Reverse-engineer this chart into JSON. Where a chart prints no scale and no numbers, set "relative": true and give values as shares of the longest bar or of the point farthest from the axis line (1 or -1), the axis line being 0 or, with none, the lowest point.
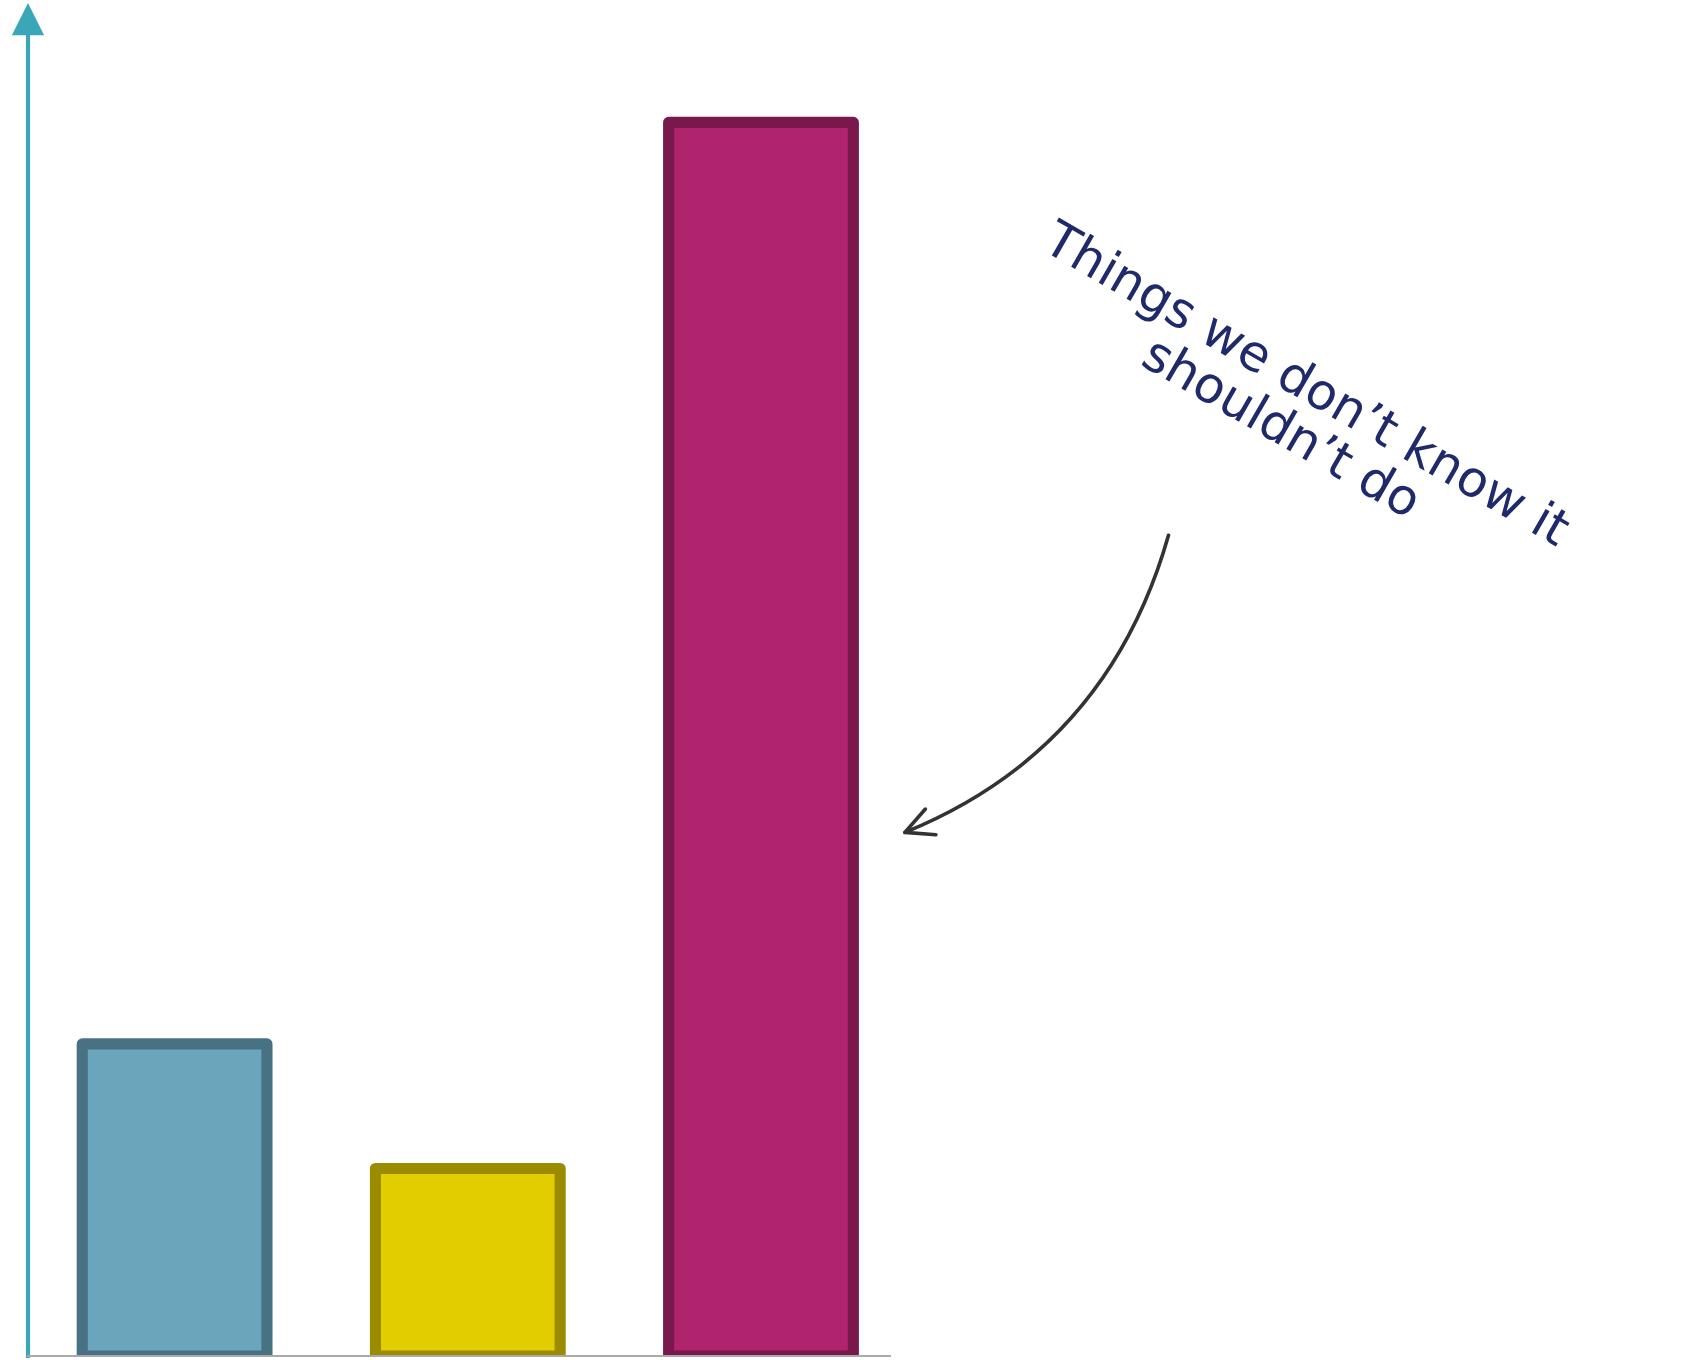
{
  "chart_data": {
    "type": "bar",
    "relative": true,
    "categories": [
      null,
      null,
      null
    ],
    "values": [
      0.253,
      0.152,
      1
    ],
    "colors": [
      "#6aa6bb",
      "#e2cd00",
      "#b0246e"
    ],
    "annotations": [
      "Things we don’t know it\nshouldn’t do"
    ]
  }
}
